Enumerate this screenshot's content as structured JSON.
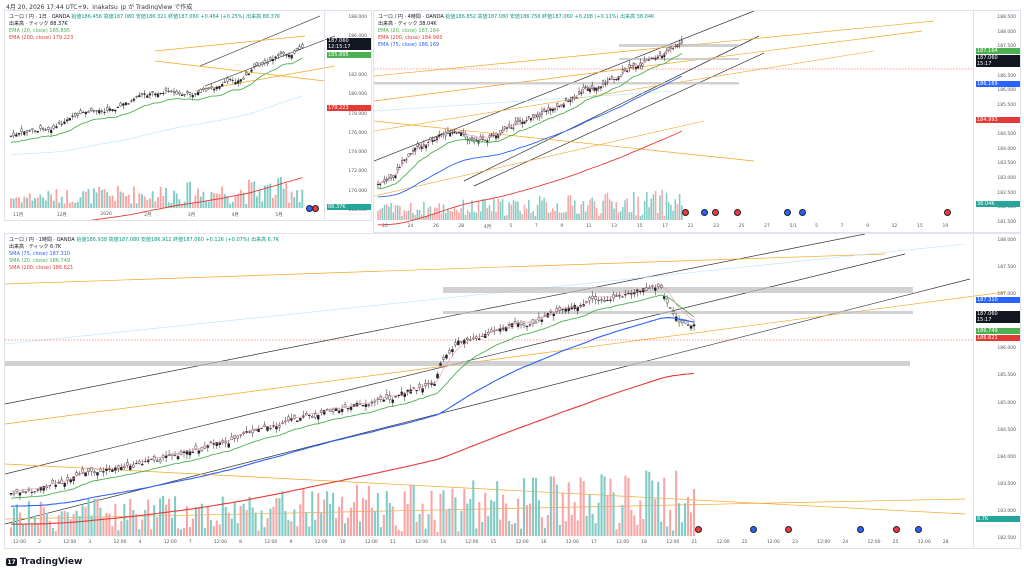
{
  "header": {
    "text": "4月 20, 2026 17:44 UTC+9、inakatsu_jp が TradingView で作成"
  },
  "footer": {
    "brand": "TradingView",
    "logo_icon": "tradingview-logo-icon"
  },
  "pane_daily": {
    "title": "ユーロ / 円 · 1日 · OANDA",
    "ohlc": "始値186.456  高値187.080  安値186.321  終値187.060  +0.464 (+0.25%)  出来高 88.37K",
    "volume": "出来高 · ティック  88.37K",
    "ema1": "EMA (20, close)  185.895",
    "ema2": "EMA (200, close)  179.223",
    "yticks": [
      "188.000",
      "186.000",
      "184.000",
      "182.000",
      "180.000",
      "178.000",
      "176.000",
      "174.000",
      "172.000",
      "170.000",
      "168.000"
    ],
    "xticks": [
      "11月",
      "12月",
      "2026",
      "2月",
      "3月",
      "4月",
      "5月"
    ],
    "price_tag": "187.060",
    "price_tag2": "12:15:17",
    "ema20_tag": "185.895",
    "ema200_tag": "179.223",
    "vol_tag": "88.37K"
  },
  "pane_4h": {
    "title": "ユーロ / 円 · 4時間 · OANDA",
    "ohlc": "始値186.852  高値187.080  安値186.756  終値187.060  +0.208 (+0.11%)  出来高 38.04K",
    "volume": "出来高 · ティック  38.04K",
    "ema1": "EMA (20, close)  187.164",
    "ema2": "EMA (200, close)  184.993",
    "ema3": "EMA (75, close)  186.169",
    "yticks": [
      "188.500",
      "188.000",
      "187.500",
      "187.000",
      "186.500",
      "186.000",
      "185.500",
      "185.000",
      "184.500",
      "184.000",
      "183.500",
      "183.000",
      "182.500",
      "182.000",
      "181.500"
    ],
    "xticks": [
      "20",
      "24",
      "26",
      "28",
      "4月",
      "5",
      "7",
      "9",
      "11",
      "13",
      "15",
      "17",
      "21",
      "23",
      "25",
      "27",
      "5/1",
      "5",
      "7",
      "9",
      "12",
      "15",
      "19"
    ],
    "price_tag": "187.060",
    "price_tag2": "15:17",
    "ema20_tag": "187.164",
    "ema75_tag": "186.169",
    "ema200_tag": "184.993",
    "vol_tag": "38.04K"
  },
  "pane_1h": {
    "title": "ユーロ / 円 · 1時間 · OANDA",
    "ohlc": "始値186.938  高値187.080  安値186.912  終値187.060  +0.126 (+0.07%)  出来高 6.7K",
    "volume": "出来高 · ティック  6.7K",
    "sma1": "SMA (75, close)  187.310",
    "sma2": "SMA (20, close)  186.749",
    "sma3": "SMA (200, close)  186.621",
    "yticks": [
      "188.000",
      "187.500",
      "187.000",
      "186.500",
      "186.000",
      "185.500",
      "185.000",
      "184.500",
      "184.000",
      "183.500",
      "183.000",
      "182.500"
    ],
    "xticks": [
      "12:00",
      "2",
      "12:00",
      "3",
      "12:00",
      "4",
      "12:00",
      "7",
      "12:00",
      "8",
      "12:00",
      "9",
      "12:00",
      "10",
      "12:00",
      "11",
      "12:00",
      "14",
      "12:00",
      "15",
      "12:00",
      "16",
      "12:00",
      "17",
      "12:00",
      "18",
      "12:00",
      "21",
      "12:00",
      "22",
      "12:00",
      "23",
      "12:00",
      "24",
      "12:00",
      "25",
      "12:00",
      "28"
    ],
    "sma75_tag": "187.310",
    "price_tag": "187.060",
    "price_tag2": "15:17",
    "sma20_tag": "186.749",
    "sma200_tag": "186.621",
    "vol_tag": "6.7K"
  },
  "colors": {
    "up": "#26a69a",
    "down": "#ef5350",
    "orange": "#f5a623",
    "green": "#4caf50",
    "blue": "#2962ff",
    "red": "#e53935"
  }
}
